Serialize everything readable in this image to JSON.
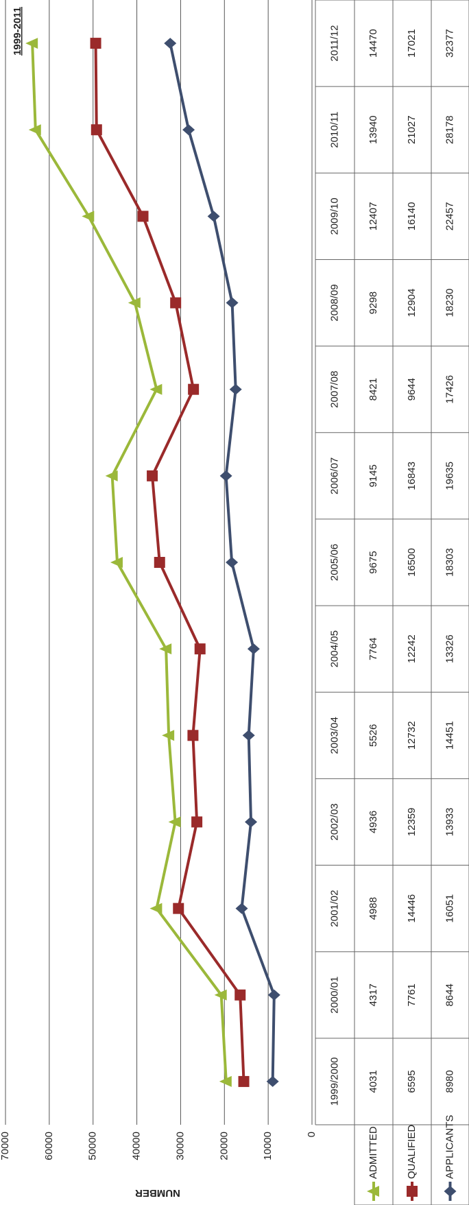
{
  "chart_data": {
    "type": "stacked_line",
    "title": "1999-2011",
    "y_label": "NUMBER",
    "categories": [
      "1999/2000",
      "2000/01",
      "2001/02",
      "2002/03",
      "2003/04",
      "2004/05",
      "2005/06",
      "2006/07",
      "2007/08",
      "2008/09",
      "2009/10",
      "2010/11",
      "2011/12"
    ],
    "series": [
      {
        "name": "ADMITTED",
        "color": "#9bb83a",
        "marker": "triangle",
        "values": [
          4031,
          4317,
          4988,
          4936,
          5526,
          7764,
          9675,
          9145,
          8421,
          9298,
          12407,
          13940,
          14470
        ]
      },
      {
        "name": "QUALIFIED",
        "color": "#9a2a2a",
        "marker": "square",
        "values": [
          6595,
          7761,
          14446,
          12359,
          12732,
          12242,
          16500,
          16843,
          9644,
          12904,
          16140,
          21027,
          17021
        ]
      },
      {
        "name": "APPLICANTS",
        "color": "#3e4e6e",
        "marker": "diamond",
        "values": [
          8980,
          8644,
          16051,
          13933,
          14451,
          13326,
          18303,
          19635,
          17426,
          18230,
          22457,
          28178,
          32377
        ]
      }
    ],
    "ylim": [
      0,
      70000
    ],
    "yticks": [
      0,
      10000,
      20000,
      30000,
      40000,
      50000,
      60000,
      70000
    ],
    "grid": true,
    "data_table": true
  }
}
